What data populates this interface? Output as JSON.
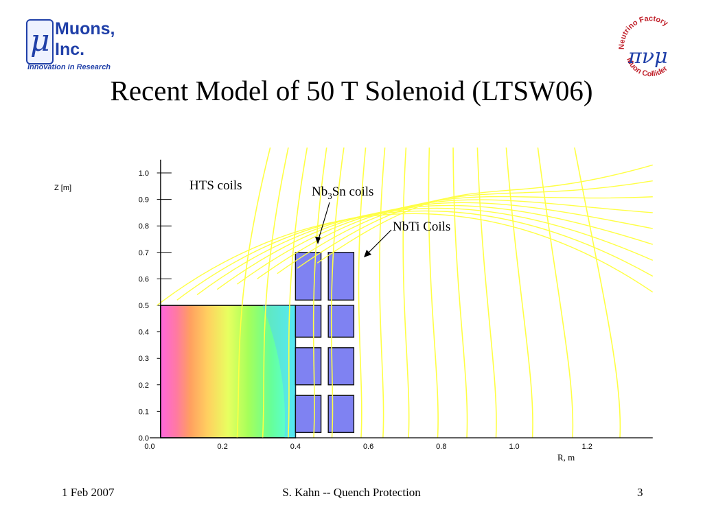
{
  "logo_left": {
    "symbol": "μ",
    "line1": "Muons,",
    "line2": "Inc.",
    "tagline": "Innovation in Research"
  },
  "logo_right": {
    "ring_top": "Neutrino Factory",
    "ring_bottom": "Muon Collider",
    "center_symbols": "πνμ"
  },
  "title": "Recent Model of 50 T Solenoid (LTSW06)",
  "figure": {
    "y_axis_label": "Z [m]",
    "x_axis_label": "R, m",
    "annotations": {
      "hts": "HTS coils",
      "nb3sn_pre": "Nb",
      "nb3sn_sub": "3",
      "nb3sn_post": "Sn coils",
      "nbti": "NbTi Coils"
    }
  },
  "chart_data": {
    "type": "contour",
    "xlabel": "R, m",
    "ylabel": "Z [m]",
    "xlim": [
      0.0,
      1.38
    ],
    "ylim": [
      0.0,
      1.05
    ],
    "xticks": [
      "0.0",
      "0.2",
      "0.4",
      "0.6",
      "0.8",
      "1.0",
      "1.2"
    ],
    "yticks": [
      "0.0",
      "0.1",
      "0.2",
      "0.3",
      "0.4",
      "0.5",
      "0.6",
      "0.7",
      "0.8",
      "0.9",
      "1.0"
    ],
    "regions": [
      {
        "name": "HTS coils",
        "r": [
          0.03,
          0.4
        ],
        "z": [
          0.0,
          0.5
        ]
      }
    ],
    "coils": [
      {
        "r": [
          0.4,
          0.47
        ],
        "z": [
          0.52,
          0.7
        ]
      },
      {
        "r": [
          0.49,
          0.56
        ],
        "z": [
          0.52,
          0.7
        ]
      },
      {
        "r": [
          0.4,
          0.47
        ],
        "z": [
          0.38,
          0.5
        ]
      },
      {
        "r": [
          0.49,
          0.56
        ],
        "z": [
          0.38,
          0.5
        ]
      },
      {
        "r": [
          0.4,
          0.47
        ],
        "z": [
          0.2,
          0.34
        ]
      },
      {
        "r": [
          0.49,
          0.56
        ],
        "z": [
          0.2,
          0.34
        ]
      },
      {
        "r": [
          0.4,
          0.47
        ],
        "z": [
          0.02,
          0.16
        ]
      },
      {
        "r": [
          0.49,
          0.56
        ],
        "z": [
          0.02,
          0.16
        ]
      }
    ],
    "field_lines_r_at_axis": [
      0.24,
      0.31,
      0.38,
      0.45,
      0.5,
      0.58,
      0.64,
      0.71,
      0.79,
      0.87,
      0.95,
      1.05,
      1.16,
      1.29
    ]
  },
  "footer": {
    "date": "1 Feb 2007",
    "center": "S. Kahn -- Quench Protection",
    "page": "3"
  }
}
